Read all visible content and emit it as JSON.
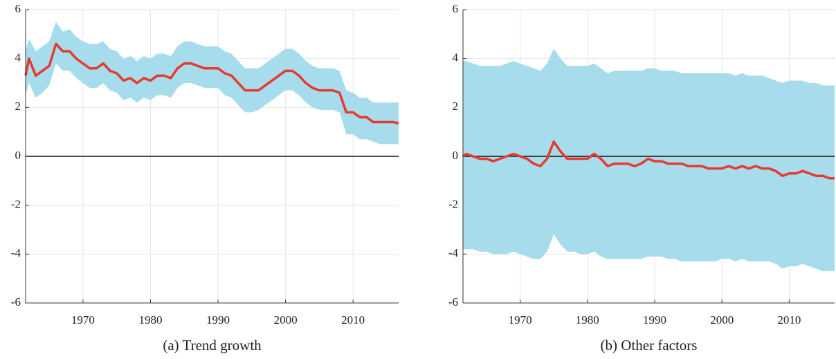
{
  "chart_data": [
    {
      "type": "line",
      "caption": "(a) Trend growth",
      "x": [
        1961.5,
        1962,
        1963,
        1964,
        1965,
        1966,
        1967,
        1968,
        1969,
        1970,
        1971,
        1972,
        1973,
        1974,
        1975,
        1976,
        1977,
        1978,
        1979,
        1980,
        1981,
        1982,
        1983,
        1984,
        1985,
        1986,
        1987,
        1988,
        1989,
        1990,
        1991,
        1992,
        1993,
        1994,
        1995,
        1996,
        1997,
        1998,
        1999,
        2000,
        2001,
        2002,
        2003,
        2004,
        2005,
        2006,
        2007,
        2008,
        2009,
        2010,
        2011,
        2012,
        2013,
        2014,
        2015,
        2016,
        2016.75
      ],
      "series": [
        {
          "color": "#e8392d",
          "values": [
            3.3,
            4.0,
            3.3,
            3.5,
            3.7,
            4.6,
            4.3,
            4.3,
            4.0,
            3.8,
            3.6,
            3.6,
            3.8,
            3.5,
            3.4,
            3.1,
            3.2,
            3.0,
            3.2,
            3.1,
            3.3,
            3.3,
            3.2,
            3.6,
            3.8,
            3.8,
            3.7,
            3.6,
            3.6,
            3.6,
            3.4,
            3.3,
            3.0,
            2.7,
            2.7,
            2.7,
            2.9,
            3.1,
            3.3,
            3.5,
            3.5,
            3.3,
            3.0,
            2.8,
            2.7,
            2.7,
            2.7,
            2.6,
            1.8,
            1.8,
            1.6,
            1.6,
            1.4,
            1.4,
            1.4,
            1.4,
            1.35
          ]
        }
      ],
      "band": {
        "color": "#a6dcec",
        "upper": [
          4.3,
          4.8,
          4.3,
          4.5,
          4.7,
          5.5,
          5.1,
          5.2,
          4.9,
          4.7,
          4.6,
          4.6,
          4.7,
          4.4,
          4.3,
          4.0,
          4.1,
          3.9,
          4.1,
          4.0,
          4.2,
          4.2,
          4.1,
          4.5,
          4.7,
          4.7,
          4.6,
          4.5,
          4.5,
          4.5,
          4.3,
          4.2,
          3.9,
          3.6,
          3.6,
          3.6,
          3.8,
          4.0,
          4.2,
          4.4,
          4.4,
          4.2,
          3.9,
          3.7,
          3.6,
          3.6,
          3.6,
          3.5,
          2.7,
          2.6,
          2.4,
          2.4,
          2.2,
          2.2,
          2.2,
          2.2,
          2.2
        ],
        "lower": [
          2.5,
          3.0,
          2.4,
          2.6,
          2.9,
          3.8,
          3.5,
          3.5,
          3.2,
          3.0,
          2.8,
          2.8,
          3.0,
          2.7,
          2.6,
          2.3,
          2.4,
          2.2,
          2.4,
          2.3,
          2.5,
          2.5,
          2.4,
          2.8,
          3.0,
          3.0,
          2.9,
          2.8,
          2.8,
          2.8,
          2.5,
          2.4,
          2.1,
          1.8,
          1.8,
          1.9,
          2.1,
          2.3,
          2.5,
          2.7,
          2.7,
          2.5,
          2.2,
          2.0,
          1.9,
          1.9,
          1.9,
          1.8,
          0.9,
          0.9,
          0.7,
          0.7,
          0.6,
          0.5,
          0.5,
          0.5,
          0.5
        ]
      },
      "reference_line": 0,
      "xlim": [
        1961.5,
        2016.75
      ],
      "xticks": [
        1970,
        1980,
        1990,
        2000,
        2010
      ],
      "ylim": [
        -6,
        6
      ],
      "yticks": [
        -6,
        -4,
        -2,
        0,
        2,
        4,
        6
      ],
      "grid": true
    },
    {
      "type": "line",
      "caption": "(b) Other factors",
      "x": [
        1961.5,
        1962,
        1963,
        1964,
        1965,
        1966,
        1967,
        1968,
        1969,
        1970,
        1971,
        1972,
        1973,
        1974,
        1975,
        1976,
        1977,
        1978,
        1979,
        1980,
        1981,
        1982,
        1983,
        1984,
        1985,
        1986,
        1987,
        1988,
        1989,
        1990,
        1991,
        1992,
        1993,
        1994,
        1995,
        1996,
        1997,
        1998,
        1999,
        2000,
        2001,
        2002,
        2003,
        2004,
        2005,
        2006,
        2007,
        2008,
        2009,
        2010,
        2011,
        2012,
        2013,
        2014,
        2015,
        2016,
        2016.75
      ],
      "series": [
        {
          "color": "#e8392d",
          "values": [
            0.0,
            0.1,
            0.0,
            -0.1,
            -0.1,
            -0.2,
            -0.1,
            0.0,
            0.1,
            0.0,
            -0.1,
            -0.3,
            -0.4,
            -0.1,
            0.6,
            0.2,
            -0.1,
            -0.1,
            -0.1,
            -0.1,
            0.1,
            -0.1,
            -0.4,
            -0.3,
            -0.3,
            -0.3,
            -0.4,
            -0.3,
            -0.1,
            -0.2,
            -0.2,
            -0.3,
            -0.3,
            -0.3,
            -0.4,
            -0.4,
            -0.4,
            -0.5,
            -0.5,
            -0.5,
            -0.4,
            -0.5,
            -0.4,
            -0.5,
            -0.4,
            -0.5,
            -0.5,
            -0.6,
            -0.8,
            -0.7,
            -0.7,
            -0.6,
            -0.7,
            -0.8,
            -0.8,
            -0.9,
            -0.9
          ]
        }
      ],
      "band": {
        "color": "#a6dcec",
        "upper": [
          3.9,
          3.9,
          3.8,
          3.7,
          3.7,
          3.7,
          3.7,
          3.8,
          3.9,
          3.8,
          3.7,
          3.6,
          3.5,
          3.8,
          4.4,
          4.0,
          3.7,
          3.7,
          3.7,
          3.7,
          3.8,
          3.6,
          3.4,
          3.5,
          3.5,
          3.5,
          3.5,
          3.5,
          3.6,
          3.6,
          3.5,
          3.5,
          3.5,
          3.4,
          3.4,
          3.4,
          3.4,
          3.4,
          3.4,
          3.4,
          3.4,
          3.3,
          3.4,
          3.3,
          3.3,
          3.3,
          3.2,
          3.1,
          3.0,
          3.1,
          3.1,
          3.1,
          3.0,
          3.0,
          2.9,
          2.9,
          2.9
        ],
        "lower": [
          -3.8,
          -3.8,
          -3.8,
          -3.9,
          -3.9,
          -4.0,
          -4.0,
          -4.0,
          -3.9,
          -4.0,
          -4.1,
          -4.2,
          -4.2,
          -3.9,
          -3.2,
          -3.6,
          -3.9,
          -3.9,
          -4.0,
          -4.0,
          -3.9,
          -4.1,
          -4.2,
          -4.2,
          -4.2,
          -4.2,
          -4.2,
          -4.2,
          -4.1,
          -4.1,
          -4.1,
          -4.2,
          -4.2,
          -4.3,
          -4.3,
          -4.3,
          -4.3,
          -4.3,
          -4.3,
          -4.2,
          -4.2,
          -4.3,
          -4.2,
          -4.3,
          -4.3,
          -4.3,
          -4.3,
          -4.4,
          -4.6,
          -4.5,
          -4.5,
          -4.4,
          -4.5,
          -4.6,
          -4.7,
          -4.7,
          -4.7
        ]
      },
      "reference_line": 0,
      "xlim": [
        1961.5,
        2016.75
      ],
      "xticks": [
        1970,
        1980,
        1990,
        2000,
        2010
      ],
      "ylim": [
        -6,
        6
      ],
      "yticks": [
        -6,
        -4,
        -2,
        0,
        2,
        4,
        6
      ],
      "grid": true
    }
  ]
}
